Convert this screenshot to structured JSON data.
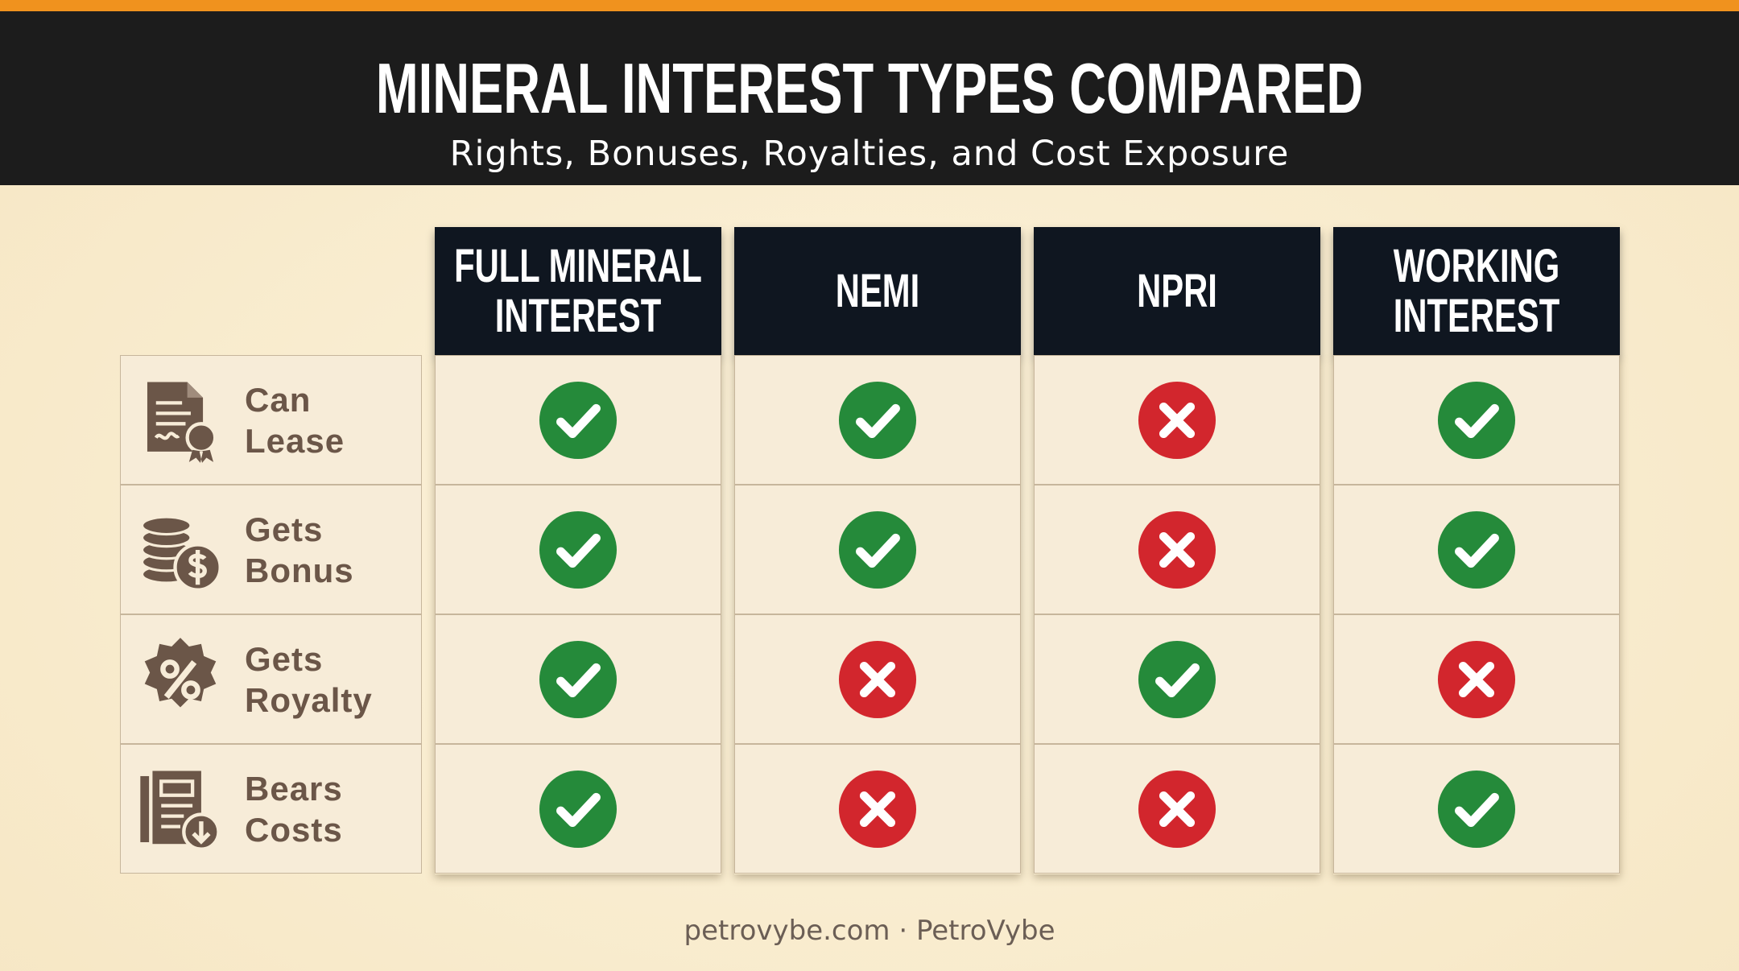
{
  "header": {
    "title": "MINERAL INTEREST TYPES COMPARED",
    "subtitle": "Rights, Bonuses, Royalties, and Cost Exposure"
  },
  "table": {
    "columns": [
      "FULL MINERAL INTEREST",
      "NEMI",
      "NPRI",
      "WORKING INTEREST"
    ],
    "rows": [
      {
        "label": "Can Lease",
        "cells": [
          true,
          true,
          false,
          true
        ]
      },
      {
        "label": "Gets Bonus",
        "cells": [
          true,
          true,
          false,
          true
        ]
      },
      {
        "label": "Gets Royalty",
        "cells": [
          true,
          false,
          true,
          false
        ]
      },
      {
        "label": "Bears Costs",
        "cells": [
          true,
          false,
          false,
          true
        ]
      }
    ]
  },
  "footer": "petrovybe.com · PetroVybe"
}
